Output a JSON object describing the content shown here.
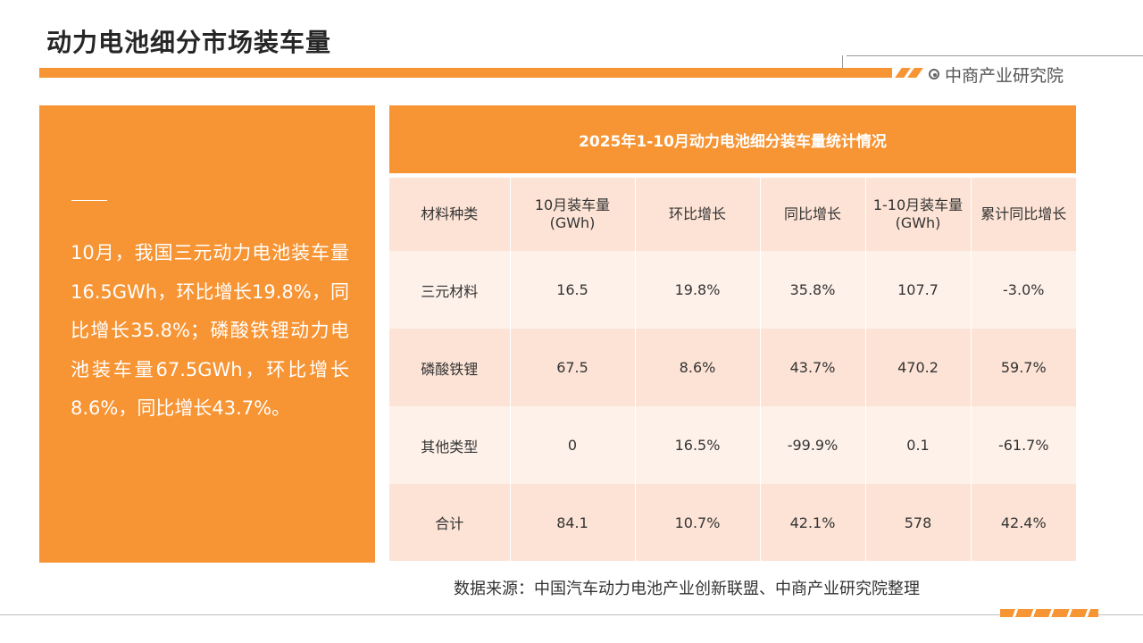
{
  "page": {
    "title": "动力电池细分市场装车量",
    "brand": "中商产业研究院"
  },
  "summary": {
    "text": "10月，我国三元动力电池装车量16.5GWh，环比增长19.8%，同比增长35.8%；磷酸铁锂动力电池装车量67.5GWh，环比增长8.6%，同比增长43.7%。"
  },
  "table": {
    "title": "2025年1-10月动力电池细分装车量统计情况",
    "headers": [
      "材料种类",
      "10月装车量\n(GWh)",
      "环比增长",
      "同比增长",
      "1-10月装车量\n(GWh)",
      "累计同比增长"
    ],
    "rows": [
      [
        "三元材料",
        "16.5",
        "19.8%",
        "35.8%",
        "107.7",
        "-3.0%"
      ],
      [
        "磷酸铁锂",
        "67.5",
        "8.6%",
        "43.7%",
        "470.2",
        "59.7%"
      ],
      [
        "其他类型",
        "0",
        "16.5%",
        "-99.9%",
        "0.1",
        "-61.7%"
      ],
      [
        "合计",
        "84.1",
        "10.7%",
        "42.1%",
        "578",
        "42.4%"
      ]
    ]
  },
  "footer": {
    "source": "数据来源：中国汽车动力电池产业创新联盟、中商产业研究院整理"
  },
  "colors": {
    "accent": "#F79433",
    "row_light": "#FEF1EA",
    "row_dark": "#FCE3D5"
  }
}
